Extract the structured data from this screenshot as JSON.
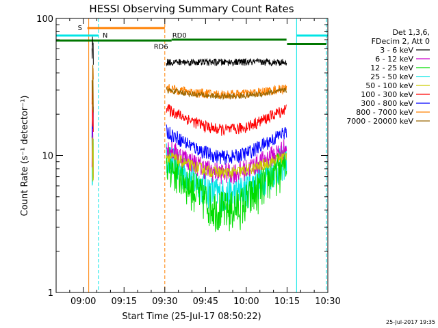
{
  "chart_data": {
    "type": "line",
    "title": "HESSI Observing Summary Count Rates",
    "xlabel": "Start Time (25-Jul-17 08:50:22)",
    "ylabel": "Count Rate (s⁻¹ detector⁻¹)",
    "yscale": "log",
    "ylim": [
      1,
      100
    ],
    "xlim_minutes_since_0850": [
      0,
      100
    ],
    "x_ticks": [
      {
        "label": "09:00",
        "t": 10
      },
      {
        "label": "09:15",
        "t": 25
      },
      {
        "label": "09:30",
        "t": 40
      },
      {
        "label": "09:45",
        "t": 55
      },
      {
        "label": "10:00",
        "t": 70
      },
      {
        "label": "10:15",
        "t": 85
      },
      {
        "label": "10:30",
        "t": 100
      }
    ],
    "y_ticks": [
      {
        "label": "1",
        "v": 1
      },
      {
        "label": "10",
        "v": 10
      },
      {
        "label": "100",
        "v": 100
      }
    ],
    "legend_header": [
      "Det 1,3,6,",
      "FDecim 2, Att 0"
    ],
    "series": [
      {
        "name": "3 - 6 keV",
        "color": "#000000",
        "level": 48,
        "noise": 0.06,
        "dip": 0.0
      },
      {
        "name": "6 - 12 keV",
        "color": "#cc00cc",
        "level": 11.5,
        "noise": 0.18,
        "dip": 0.35
      },
      {
        "name": "12 - 25 keV",
        "color": "#00dd00",
        "level": 9.0,
        "noise": 0.35,
        "dip": 0.55
      },
      {
        "name": "25 - 50 keV",
        "color": "#00e5e5",
        "level": 9.5,
        "noise": 0.3,
        "dip": 0.45
      },
      {
        "name": "50 - 100 keV",
        "color": "#cccc00",
        "level": 10.0,
        "noise": 0.1,
        "dip": 0.25
      },
      {
        "name": "100 - 300 keV",
        "color": "#ff0000",
        "level": 22,
        "noise": 0.1,
        "dip": 0.3
      },
      {
        "name": "300 - 800 keV",
        "color": "#0000ff",
        "level": 15,
        "noise": 0.12,
        "dip": 0.35
      },
      {
        "name": "800 - 7000 keV",
        "color": "#ff8000",
        "level": 31,
        "noise": 0.08,
        "dip": 0.1
      },
      {
        "name": "7000 - 20000 keV",
        "color": "#996600",
        "level": 30,
        "noise": 0.05,
        "dip": 0.1
      }
    ],
    "segments": [
      {
        "t0": 13.2,
        "t1": 13.7
      },
      {
        "t0": 40.6,
        "t1": 84.8
      }
    ],
    "annotations": {
      "saa": {
        "label": "S",
        "color": "#ff8000",
        "t0": 11.5,
        "t1": 40.0,
        "level": 85
      },
      "night": {
        "label": "N",
        "color": "#00e5e5",
        "bars": [
          {
            "t0": 0,
            "t1": 15.6
          },
          {
            "t0": 88.5,
            "t1": 100
          }
        ],
        "level": 75
      },
      "rd6": {
        "label": "RD6",
        "color": "#007700",
        "t0": 0,
        "t1": 42.5,
        "level": 69
      },
      "rd0": {
        "label": "RD0",
        "color": "#007700",
        "t0": 42.5,
        "t1": 84.8,
        "level": 70
      },
      "rd_tail": {
        "color": "#007700",
        "t0": 85.0,
        "t1": 99.5,
        "level": 65
      }
    },
    "vertical_lines": [
      {
        "t": 12.0,
        "color": "#ff8000",
        "dashed": false
      },
      {
        "t": 15.6,
        "color": "#00e5e5",
        "dashed": true
      },
      {
        "t": 40.0,
        "color": "#ff8000",
        "dashed": true
      },
      {
        "t": 88.5,
        "color": "#00e5e5",
        "dashed": false
      },
      {
        "t": 99.5,
        "color": "#00e5e5",
        "dashed": true
      }
    ]
  },
  "footer": {
    "timestamp": "25-Jul-2017 19:35"
  }
}
